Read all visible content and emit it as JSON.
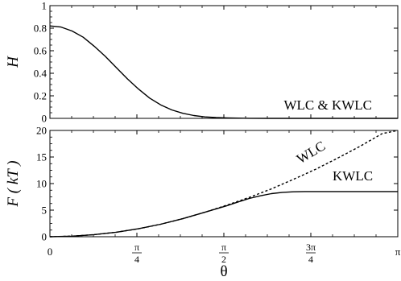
{
  "chart_data": [
    {
      "type": "line",
      "ylabel": "H",
      "ylim": [
        0,
        1
      ],
      "yticks": [
        "0",
        "0.2",
        "0.4",
        "0.6",
        "0.8",
        "1"
      ],
      "xlim": [
        0,
        3.14159
      ],
      "annotation": "WLC & KWLC",
      "series": [
        {
          "x": [
            0,
            0.1,
            0.2,
            0.3,
            0.4,
            0.5,
            0.6,
            0.7,
            0.8,
            0.9,
            1.0,
            1.1,
            1.2,
            1.3,
            1.4,
            1.5,
            1.6,
            1.8,
            2.0,
            2.3,
            2.6,
            2.9,
            3.14
          ],
          "y": [
            0.82,
            0.81,
            0.775,
            0.72,
            0.64,
            0.55,
            0.45,
            0.35,
            0.26,
            0.18,
            0.12,
            0.075,
            0.045,
            0.025,
            0.013,
            0.007,
            0.004,
            0.001,
            0,
            0,
            0,
            0,
            0
          ]
        }
      ]
    },
    {
      "type": "line",
      "ylabel": "F ( kT )",
      "ylim": [
        0,
        20
      ],
      "yticks": [
        "0",
        "5",
        "10",
        "15",
        "20"
      ],
      "xlabel": "θ",
      "xlim": [
        0,
        3.14159
      ],
      "xticks": [
        {
          "value": 0,
          "label": "0"
        },
        {
          "value": 0.7854,
          "num": "π",
          "den": "4"
        },
        {
          "value": 1.5708,
          "num": "π",
          "den": "2"
        },
        {
          "value": 2.3562,
          "num": "3π",
          "den": "4"
        },
        {
          "value": 3.14159,
          "label": "π"
        }
      ],
      "series": [
        {
          "name": "WLC",
          "style": "dashed",
          "x": [
            0,
            0.2,
            0.4,
            0.6,
            0.8,
            1.0,
            1.2,
            1.4,
            1.6,
            1.8,
            2.0,
            2.2,
            2.4,
            2.6,
            2.8,
            3.0,
            3.14
          ],
          "y": [
            0,
            0.1,
            0.4,
            0.85,
            1.5,
            2.35,
            3.4,
            4.6,
            5.95,
            7.4,
            9.0,
            10.8,
            12.7,
            14.8,
            17.0,
            19.4,
            21.2
          ]
        },
        {
          "name": "KWLC",
          "style": "solid",
          "x": [
            0,
            0.2,
            0.4,
            0.6,
            0.8,
            1.0,
            1.2,
            1.4,
            1.6,
            1.7,
            1.8,
            1.9,
            2.0,
            2.1,
            2.2,
            2.3,
            2.4,
            2.6,
            2.8,
            3.0,
            3.14
          ],
          "y": [
            0,
            0.1,
            0.4,
            0.85,
            1.5,
            2.35,
            3.4,
            4.6,
            5.85,
            6.55,
            7.2,
            7.7,
            8.1,
            8.35,
            8.45,
            8.5,
            8.5,
            8.5,
            8.5,
            8.5,
            8.5
          ]
        }
      ]
    }
  ]
}
